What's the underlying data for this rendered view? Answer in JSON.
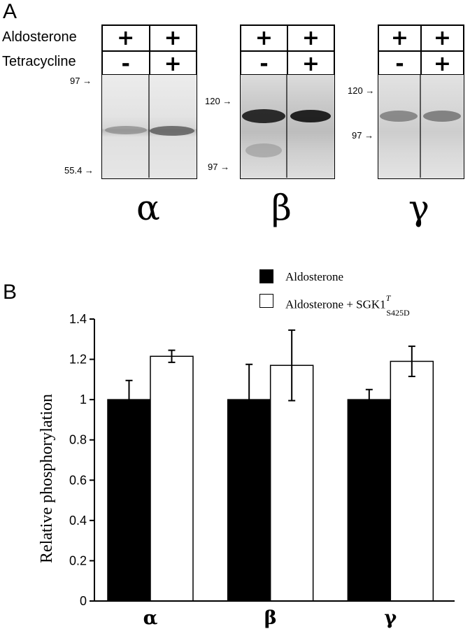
{
  "panel_a": {
    "letter": "A",
    "row_labels": {
      "aldosterone": "Aldosterone",
      "tetracycline": "Tetracycline"
    },
    "blots": [
      {
        "subunit": "α",
        "conditions": [
          "+",
          "+",
          "-",
          "+"
        ],
        "markers": [
          "97",
          "55.4"
        ]
      },
      {
        "subunit": "β",
        "conditions": [
          "+",
          "+",
          "-",
          "+"
        ],
        "markers": [
          "120",
          "97"
        ]
      },
      {
        "subunit": "γ",
        "conditions": [
          "+",
          "+",
          "-",
          "+"
        ],
        "markers": [
          "120",
          "97"
        ]
      }
    ]
  },
  "panel_b": {
    "letter": "B",
    "legend": {
      "aldosterone": "Aldosterone",
      "combo_main": "Aldosterone + SGK1",
      "combo_sup": "T",
      "combo_sub": "S425D"
    }
  },
  "chart_data": {
    "type": "bar",
    "categories": [
      "α",
      "β",
      "γ"
    ],
    "series": [
      {
        "name": "Aldosterone",
        "color": "#000000",
        "values": [
          1.0,
          1.0,
          1.0
        ],
        "errors": [
          0.095,
          0.175,
          0.05
        ]
      },
      {
        "name": "Aldosterone + SGK1T S425D",
        "color": "#ffffff",
        "values": [
          1.215,
          1.17,
          1.19
        ],
        "errors": [
          0.03,
          0.175,
          0.075
        ]
      }
    ],
    "ylabel": "Relative phosphorylation",
    "ylim": [
      0,
      1.4
    ],
    "yticks": [
      0,
      0.2,
      0.4,
      0.6,
      0.8,
      1,
      1.2,
      1.4
    ],
    "ytick_labels": [
      "0",
      "0.2",
      "0.4",
      "0.6",
      "0.8",
      "1",
      "1.2",
      "1.4"
    ],
    "grid": false,
    "legend_position": "top-right"
  }
}
